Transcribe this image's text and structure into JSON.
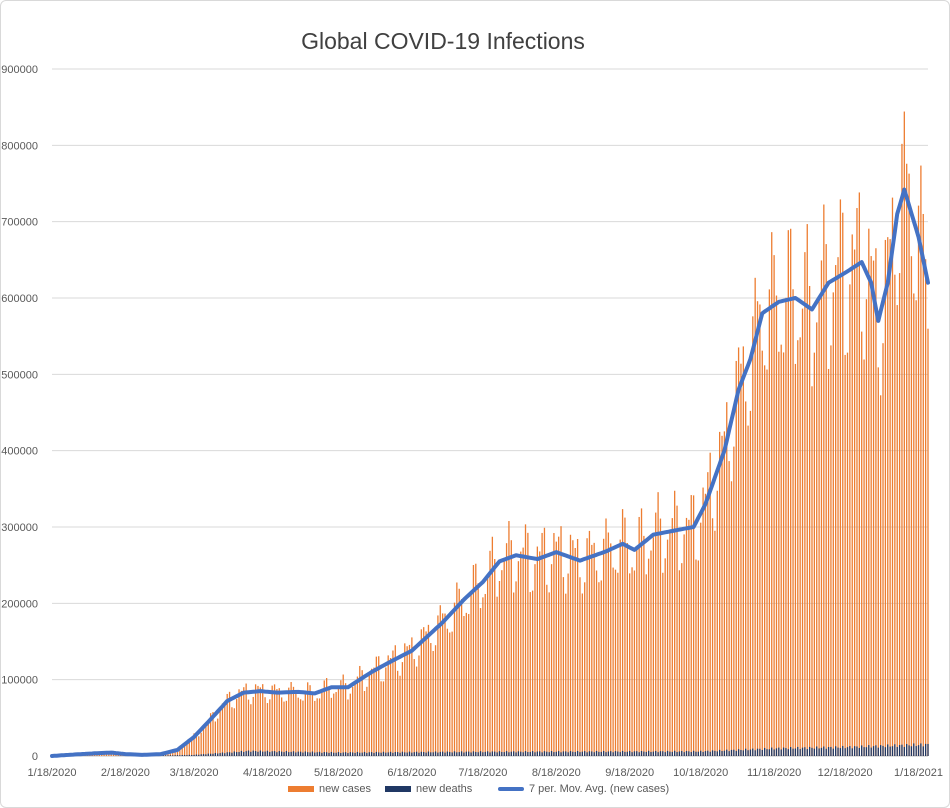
{
  "chart_data": {
    "type": "bar",
    "title": "Global COVID-19 Infections",
    "xlabel": "",
    "ylabel": "",
    "x_start_date": "1/18/2020",
    "x_end_date": "1/22/2021",
    "x_ticks": [
      "1/18/2020",
      "2/18/2020",
      "3/18/2020",
      "4/18/2020",
      "5/18/2020",
      "6/18/2020",
      "7/18/2020",
      "8/18/2020",
      "9/18/2020",
      "10/18/2020",
      "11/18/2020",
      "12/18/2020",
      "1/18/2021"
    ],
    "ylim": [
      0,
      900000
    ],
    "y_ticks": [
      0,
      100000,
      200000,
      300000,
      400000,
      500000,
      600000,
      700000,
      800000,
      900000
    ],
    "grid": true,
    "legend_position": "bottom",
    "series": [
      {
        "name": "new cases",
        "kind": "bar",
        "color": "#ED7D31",
        "weekly_pattern": [
          0.86,
          0.92,
          1.05,
          1.1,
          1.12,
          1.08,
          0.87
        ],
        "anchors": [
          [
            "1/18/2020",
            0
          ],
          [
            "1/25/2020",
            1500
          ],
          [
            "2/5/2020",
            3500
          ],
          [
            "2/12/2020",
            4500
          ],
          [
            "2/18/2020",
            2500
          ],
          [
            "2/25/2020",
            1500
          ],
          [
            "3/4/2020",
            2500
          ],
          [
            "3/11/2020",
            8000
          ],
          [
            "3/18/2020",
            25000
          ],
          [
            "3/25/2020",
            48000
          ],
          [
            "4/1/2020",
            72000
          ],
          [
            "4/8/2020",
            83000
          ],
          [
            "4/15/2020",
            85000
          ],
          [
            "4/22/2020",
            83000
          ],
          [
            "5/1/2020",
            84000
          ],
          [
            "5/8/2020",
            82000
          ],
          [
            "5/15/2020",
            90000
          ],
          [
            "5/22/2020",
            90000
          ],
          [
            "6/1/2020",
            110000
          ],
          [
            "6/8/2020",
            122000
          ],
          [
            "6/18/2020",
            138000
          ],
          [
            "7/1/2020",
            175000
          ],
          [
            "7/10/2020",
            205000
          ],
          [
            "7/18/2020",
            228000
          ],
          [
            "7/25/2020",
            255000
          ],
          [
            "8/1/2020",
            263000
          ],
          [
            "8/10/2020",
            258000
          ],
          [
            "8/18/2020",
            267000
          ],
          [
            "8/28/2020",
            256000
          ],
          [
            "9/8/2020",
            268000
          ],
          [
            "9/15/2020",
            278000
          ],
          [
            "9/20/2020",
            270000
          ],
          [
            "9/28/2020",
            290000
          ],
          [
            "10/8/2020",
            296000
          ],
          [
            "10/15/2020",
            300000
          ],
          [
            "10/20/2020",
            330000
          ],
          [
            "10/28/2020",
            400000
          ],
          [
            "11/3/2020",
            480000
          ],
          [
            "11/8/2020",
            520000
          ],
          [
            "11/13/2020",
            580000
          ],
          [
            "11/20/2020",
            595000
          ],
          [
            "11/27/2020",
            600000
          ],
          [
            "12/4/2020",
            585000
          ],
          [
            "12/11/2020",
            620000
          ],
          [
            "12/18/2020",
            633000
          ],
          [
            "12/25/2020",
            647000
          ],
          [
            "12/29/2020",
            620000
          ],
          [
            "1/1/2021",
            570000
          ],
          [
            "1/5/2021",
            620000
          ],
          [
            "1/9/2021",
            710000
          ],
          [
            "1/12/2021",
            742000
          ],
          [
            "1/18/2021",
            680000
          ],
          [
            "1/22/2021",
            620000
          ]
        ]
      },
      {
        "name": "new deaths",
        "kind": "bar",
        "color": "#203864",
        "anchors": [
          [
            "1/18/2020",
            0
          ],
          [
            "2/25/2020",
            100
          ],
          [
            "3/18/2020",
            1500
          ],
          [
            "4/10/2020",
            6500
          ],
          [
            "5/18/2020",
            4500
          ],
          [
            "7/18/2020",
            5500
          ],
          [
            "10/18/2020",
            6000
          ],
          [
            "11/20/2020",
            10000
          ],
          [
            "12/18/2020",
            11500
          ],
          [
            "1/18/2021",
            14500
          ],
          [
            "1/22/2021",
            15000
          ]
        ]
      },
      {
        "name": "7 per. Mov. Avg. (new cases)",
        "kind": "line",
        "color": "#4472C4",
        "anchors": [
          [
            "1/18/2020",
            0
          ],
          [
            "1/25/2020",
            1500
          ],
          [
            "2/5/2020",
            3500
          ],
          [
            "2/12/2020",
            4500
          ],
          [
            "2/18/2020",
            2500
          ],
          [
            "2/25/2020",
            1500
          ],
          [
            "3/4/2020",
            2500
          ],
          [
            "3/11/2020",
            8000
          ],
          [
            "3/18/2020",
            25000
          ],
          [
            "3/25/2020",
            48000
          ],
          [
            "4/1/2020",
            72000
          ],
          [
            "4/8/2020",
            83000
          ],
          [
            "4/15/2020",
            85000
          ],
          [
            "4/22/2020",
            83000
          ],
          [
            "5/1/2020",
            84000
          ],
          [
            "5/8/2020",
            82000
          ],
          [
            "5/15/2020",
            90000
          ],
          [
            "5/22/2020",
            90000
          ],
          [
            "6/1/2020",
            110000
          ],
          [
            "6/8/2020",
            122000
          ],
          [
            "6/18/2020",
            138000
          ],
          [
            "7/1/2020",
            175000
          ],
          [
            "7/10/2020",
            205000
          ],
          [
            "7/18/2020",
            228000
          ],
          [
            "7/25/2020",
            255000
          ],
          [
            "8/1/2020",
            263000
          ],
          [
            "8/10/2020",
            258000
          ],
          [
            "8/18/2020",
            267000
          ],
          [
            "8/28/2020",
            256000
          ],
          [
            "9/8/2020",
            268000
          ],
          [
            "9/15/2020",
            278000
          ],
          [
            "9/20/2020",
            270000
          ],
          [
            "9/28/2020",
            290000
          ],
          [
            "10/8/2020",
            296000
          ],
          [
            "10/15/2020",
            300000
          ],
          [
            "10/20/2020",
            330000
          ],
          [
            "10/28/2020",
            400000
          ],
          [
            "11/3/2020",
            480000
          ],
          [
            "11/8/2020",
            520000
          ],
          [
            "11/13/2020",
            580000
          ],
          [
            "11/20/2020",
            595000
          ],
          [
            "11/27/2020",
            600000
          ],
          [
            "12/4/2020",
            585000
          ],
          [
            "12/11/2020",
            620000
          ],
          [
            "12/18/2020",
            633000
          ],
          [
            "12/25/2020",
            647000
          ],
          [
            "12/29/2020",
            620000
          ],
          [
            "1/1/2021",
            570000
          ],
          [
            "1/5/2021",
            620000
          ],
          [
            "1/9/2021",
            710000
          ],
          [
            "1/12/2021",
            742000
          ],
          [
            "1/18/2021",
            680000
          ],
          [
            "1/22/2021",
            620000
          ]
        ]
      }
    ]
  }
}
